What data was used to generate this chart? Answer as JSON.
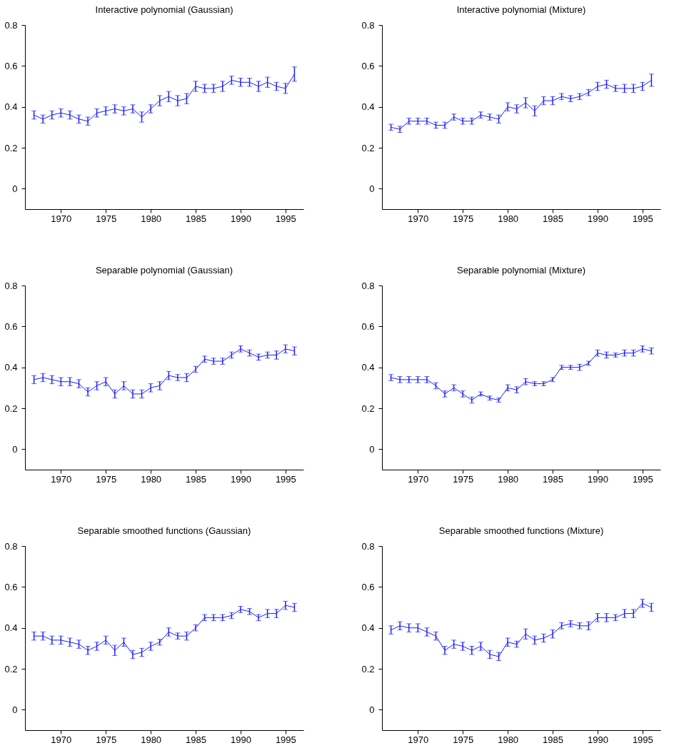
{
  "chart_data": [
    {
      "type": "line",
      "title": "Interactive polynomial (Gaussian)",
      "color": "#1f1fff",
      "marker": "none",
      "line_style": "solid",
      "grid": false,
      "xlim": [
        1966,
        1997
      ],
      "xticks": [
        1970,
        1975,
        1980,
        1985,
        1990,
        1995
      ],
      "ylim": [
        -0.1,
        0.8
      ],
      "yticks": [
        0,
        0.2,
        0.4,
        0.6,
        0.8
      ],
      "x": [
        1967,
        1968,
        1969,
        1970,
        1971,
        1972,
        1973,
        1974,
        1975,
        1976,
        1977,
        1978,
        1979,
        1980,
        1981,
        1982,
        1983,
        1984,
        1985,
        1986,
        1987,
        1988,
        1989,
        1990,
        1991,
        1992,
        1993,
        1994,
        1995,
        1996
      ],
      "values": [
        0.36,
        0.34,
        0.36,
        0.37,
        0.36,
        0.34,
        0.33,
        0.37,
        0.38,
        0.39,
        0.38,
        0.39,
        0.35,
        0.39,
        0.43,
        0.45,
        0.43,
        0.44,
        0.5,
        0.49,
        0.49,
        0.5,
        0.53,
        0.52,
        0.52,
        0.5,
        0.52,
        0.5,
        0.49,
        0.56
      ],
      "errors": [
        0.02,
        0.02,
        0.02,
        0.02,
        0.02,
        0.02,
        0.02,
        0.02,
        0.02,
        0.02,
        0.02,
        0.02,
        0.025,
        0.02,
        0.025,
        0.025,
        0.025,
        0.025,
        0.025,
        0.02,
        0.02,
        0.025,
        0.02,
        0.02,
        0.02,
        0.025,
        0.025,
        0.02,
        0.025,
        0.035
      ]
    },
    {
      "type": "line",
      "title": "Interactive polynomial (Mixture)",
      "color": "#1f1fff",
      "marker": "none",
      "line_style": "solid",
      "grid": false,
      "xlim": [
        1966,
        1997
      ],
      "xticks": [
        1970,
        1975,
        1980,
        1985,
        1990,
        1995
      ],
      "ylim": [
        -0.1,
        0.8
      ],
      "yticks": [
        0,
        0.2,
        0.4,
        0.6,
        0.8
      ],
      "x": [
        1967,
        1968,
        1969,
        1970,
        1971,
        1972,
        1973,
        1974,
        1975,
        1976,
        1977,
        1978,
        1979,
        1980,
        1981,
        1982,
        1983,
        1984,
        1985,
        1986,
        1987,
        1988,
        1989,
        1990,
        1991,
        1992,
        1993,
        1994,
        1995,
        1996
      ],
      "values": [
        0.3,
        0.29,
        0.33,
        0.33,
        0.33,
        0.31,
        0.31,
        0.35,
        0.33,
        0.33,
        0.36,
        0.35,
        0.34,
        0.4,
        0.39,
        0.42,
        0.38,
        0.43,
        0.43,
        0.45,
        0.44,
        0.45,
        0.47,
        0.5,
        0.51,
        0.49,
        0.49,
        0.49,
        0.5,
        0.53
      ],
      "errors": [
        0.015,
        0.015,
        0.015,
        0.015,
        0.015,
        0.015,
        0.015,
        0.015,
        0.015,
        0.015,
        0.015,
        0.015,
        0.02,
        0.02,
        0.02,
        0.025,
        0.025,
        0.02,
        0.02,
        0.015,
        0.015,
        0.015,
        0.015,
        0.02,
        0.02,
        0.015,
        0.02,
        0.02,
        0.02,
        0.03
      ]
    },
    {
      "type": "line",
      "title": "Separable polynomial (Gaussian)",
      "color": "#1f1fff",
      "marker": "none",
      "line_style": "solid",
      "grid": false,
      "xlim": [
        1966,
        1997
      ],
      "xticks": [
        1970,
        1975,
        1980,
        1985,
        1990,
        1995
      ],
      "ylim": [
        -0.1,
        0.8
      ],
      "yticks": [
        0,
        0.2,
        0.4,
        0.6,
        0.8
      ],
      "x": [
        1967,
        1968,
        1969,
        1970,
        1971,
        1972,
        1973,
        1974,
        1975,
        1976,
        1977,
        1978,
        1979,
        1980,
        1981,
        1982,
        1983,
        1984,
        1985,
        1986,
        1987,
        1988,
        1989,
        1990,
        1991,
        1992,
        1993,
        1994,
        1995,
        1996
      ],
      "values": [
        0.34,
        0.35,
        0.34,
        0.33,
        0.33,
        0.32,
        0.28,
        0.31,
        0.33,
        0.27,
        0.31,
        0.27,
        0.27,
        0.3,
        0.31,
        0.36,
        0.35,
        0.35,
        0.39,
        0.44,
        0.43,
        0.43,
        0.46,
        0.49,
        0.47,
        0.45,
        0.46,
        0.46,
        0.49,
        0.48
      ],
      "errors": [
        0.02,
        0.02,
        0.02,
        0.02,
        0.02,
        0.02,
        0.02,
        0.02,
        0.02,
        0.02,
        0.02,
        0.02,
        0.02,
        0.02,
        0.02,
        0.02,
        0.015,
        0.02,
        0.015,
        0.015,
        0.015,
        0.015,
        0.015,
        0.015,
        0.015,
        0.015,
        0.015,
        0.02,
        0.02,
        0.02
      ]
    },
    {
      "type": "line",
      "title": "Separable polynomial (Mixture)",
      "color": "#1f1fff",
      "marker": "none",
      "line_style": "solid",
      "grid": false,
      "xlim": [
        1966,
        1997
      ],
      "xticks": [
        1970,
        1975,
        1980,
        1985,
        1990,
        1995
      ],
      "ylim": [
        -0.1,
        0.8
      ],
      "yticks": [
        0,
        0.2,
        0.4,
        0.6,
        0.8
      ],
      "x": [
        1967,
        1968,
        1969,
        1970,
        1971,
        1972,
        1973,
        1974,
        1975,
        1976,
        1977,
        1978,
        1979,
        1980,
        1981,
        1982,
        1983,
        1984,
        1985,
        1986,
        1987,
        1988,
        1989,
        1990,
        1991,
        1992,
        1993,
        1994,
        1995,
        1996
      ],
      "values": [
        0.35,
        0.34,
        0.34,
        0.34,
        0.34,
        0.31,
        0.27,
        0.3,
        0.27,
        0.24,
        0.27,
        0.25,
        0.24,
        0.3,
        0.29,
        0.33,
        0.32,
        0.32,
        0.34,
        0.4,
        0.4,
        0.4,
        0.42,
        0.47,
        0.46,
        0.46,
        0.47,
        0.47,
        0.49,
        0.48
      ],
      "errors": [
        0.015,
        0.015,
        0.015,
        0.015,
        0.015,
        0.015,
        0.015,
        0.015,
        0.015,
        0.015,
        0.01,
        0.01,
        0.01,
        0.015,
        0.015,
        0.015,
        0.01,
        0.01,
        0.01,
        0.01,
        0.01,
        0.015,
        0.01,
        0.015,
        0.015,
        0.01,
        0.015,
        0.015,
        0.015,
        0.015
      ]
    },
    {
      "type": "line",
      "title": "Separable smoothed functions (Gaussian)",
      "color": "#1f1fff",
      "marker": "none",
      "line_style": "solid",
      "grid": false,
      "xlim": [
        1966,
        1997
      ],
      "xticks": [
        1970,
        1975,
        1980,
        1985,
        1990,
        1995
      ],
      "ylim": [
        -0.1,
        0.8
      ],
      "yticks": [
        0,
        0.2,
        0.4,
        0.6,
        0.8
      ],
      "x": [
        1967,
        1968,
        1969,
        1970,
        1971,
        1972,
        1973,
        1974,
        1975,
        1976,
        1977,
        1978,
        1979,
        1980,
        1981,
        1982,
        1983,
        1984,
        1985,
        1986,
        1987,
        1988,
        1989,
        1990,
        1991,
        1992,
        1993,
        1994,
        1995,
        1996
      ],
      "values": [
        0.36,
        0.36,
        0.34,
        0.34,
        0.33,
        0.32,
        0.29,
        0.31,
        0.34,
        0.29,
        0.33,
        0.27,
        0.28,
        0.31,
        0.33,
        0.38,
        0.36,
        0.36,
        0.4,
        0.45,
        0.45,
        0.45,
        0.46,
        0.49,
        0.48,
        0.45,
        0.47,
        0.47,
        0.51,
        0.5
      ],
      "errors": [
        0.02,
        0.02,
        0.02,
        0.02,
        0.02,
        0.02,
        0.02,
        0.02,
        0.02,
        0.025,
        0.02,
        0.02,
        0.02,
        0.02,
        0.015,
        0.02,
        0.015,
        0.02,
        0.015,
        0.015,
        0.015,
        0.015,
        0.015,
        0.015,
        0.015,
        0.015,
        0.02,
        0.02,
        0.02,
        0.02
      ]
    },
    {
      "type": "line",
      "title": "Separable smoothed functions (Mixture)",
      "color": "#1f1fff",
      "marker": "none",
      "line_style": "solid",
      "grid": false,
      "xlim": [
        1966,
        1997
      ],
      "xticks": [
        1970,
        1975,
        1980,
        1985,
        1990,
        1995
      ],
      "ylim": [
        -0.1,
        0.8
      ],
      "yticks": [
        0,
        0.2,
        0.4,
        0.6,
        0.8
      ],
      "x": [
        1967,
        1968,
        1969,
        1970,
        1971,
        1972,
        1973,
        1974,
        1975,
        1976,
        1977,
        1978,
        1979,
        1980,
        1981,
        1982,
        1983,
        1984,
        1985,
        1986,
        1987,
        1988,
        1989,
        1990,
        1991,
        1992,
        1993,
        1994,
        1995,
        1996
      ],
      "values": [
        0.39,
        0.41,
        0.4,
        0.4,
        0.38,
        0.36,
        0.29,
        0.32,
        0.31,
        0.29,
        0.31,
        0.27,
        0.26,
        0.33,
        0.32,
        0.37,
        0.34,
        0.35,
        0.37,
        0.41,
        0.42,
        0.41,
        0.41,
        0.45,
        0.45,
        0.45,
        0.47,
        0.47,
        0.52,
        0.5
      ],
      "errors": [
        0.02,
        0.02,
        0.02,
        0.02,
        0.02,
        0.02,
        0.02,
        0.02,
        0.02,
        0.02,
        0.02,
        0.02,
        0.02,
        0.02,
        0.015,
        0.025,
        0.02,
        0.02,
        0.02,
        0.015,
        0.015,
        0.015,
        0.02,
        0.02,
        0.02,
        0.015,
        0.02,
        0.02,
        0.02,
        0.02
      ]
    }
  ]
}
